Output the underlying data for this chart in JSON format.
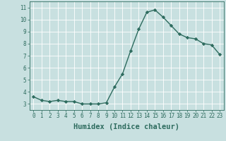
{
  "x": [
    0,
    1,
    2,
    3,
    4,
    5,
    6,
    7,
    8,
    9,
    10,
    11,
    12,
    13,
    14,
    15,
    16,
    17,
    18,
    19,
    20,
    21,
    22,
    23
  ],
  "y": [
    3.6,
    3.3,
    3.2,
    3.3,
    3.2,
    3.2,
    3.0,
    3.0,
    3.0,
    3.1,
    4.4,
    5.5,
    7.4,
    9.2,
    10.6,
    10.8,
    10.2,
    9.5,
    8.8,
    8.5,
    8.4,
    8.0,
    7.9,
    7.1
  ],
  "line_color": "#2d6b5e",
  "marker": "D",
  "marker_size": 2.2,
  "bg_color": "#c8e0e0",
  "grid_color": "#ffffff",
  "xlabel": "Humidex (Indice chaleur)",
  "xlim": [
    -0.5,
    23.5
  ],
  "ylim": [
    2.5,
    11.5
  ],
  "yticks": [
    3,
    4,
    5,
    6,
    7,
    8,
    9,
    10,
    11
  ],
  "xticks": [
    0,
    1,
    2,
    3,
    4,
    5,
    6,
    7,
    8,
    9,
    10,
    11,
    12,
    13,
    14,
    15,
    16,
    17,
    18,
    19,
    20,
    21,
    22,
    23
  ],
  "tick_color": "#2d6b5e",
  "tick_fontsize": 5.5,
  "xlabel_fontsize": 7.5,
  "line_width": 1.0
}
